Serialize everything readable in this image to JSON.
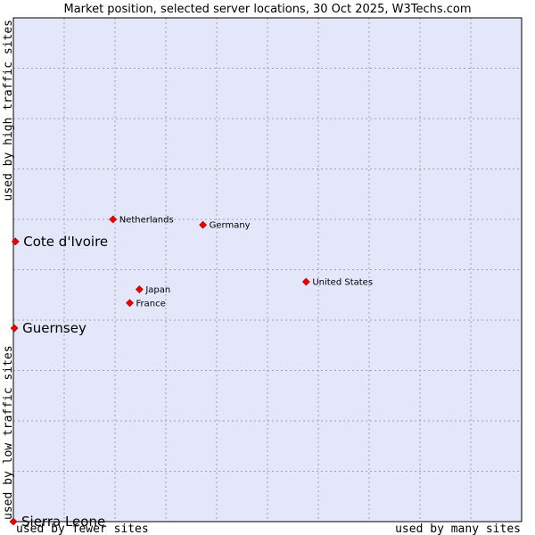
{
  "chart_data": {
    "type": "scatter",
    "title": "Market position, selected server locations, 30 Oct 2025, W3Techs.com",
    "xlabel_left": "used by fewer sites",
    "xlabel_right": "used by many sites",
    "ylabel_top": "used by high traffic sites",
    "ylabel_bottom": "used by low traffic sites",
    "xlim": [
      0,
      100
    ],
    "ylim": [
      0,
      100
    ],
    "grid": true,
    "plot_background": "#e4e6fa",
    "grid_color": "#a0a0b4",
    "marker_color": "#ee0000",
    "points": [
      {
        "name": "Netherlands",
        "x": 19.6,
        "y": 60.0,
        "emphasis": false
      },
      {
        "name": "Germany",
        "x": 37.3,
        "y": 58.9,
        "emphasis": false
      },
      {
        "name": "United States",
        "x": 57.6,
        "y": 47.6,
        "emphasis": false
      },
      {
        "name": "Japan",
        "x": 24.8,
        "y": 46.1,
        "emphasis": false
      },
      {
        "name": "France",
        "x": 22.9,
        "y": 43.4,
        "emphasis": false
      },
      {
        "name": "Cote d'Ivoire",
        "x": 0.4,
        "y": 55.6,
        "emphasis": true
      },
      {
        "name": "Guernsey",
        "x": 0.2,
        "y": 38.4,
        "emphasis": true
      },
      {
        "name": "Sierra Leone",
        "x": 0.0,
        "y": 0.0,
        "emphasis": true
      }
    ]
  }
}
